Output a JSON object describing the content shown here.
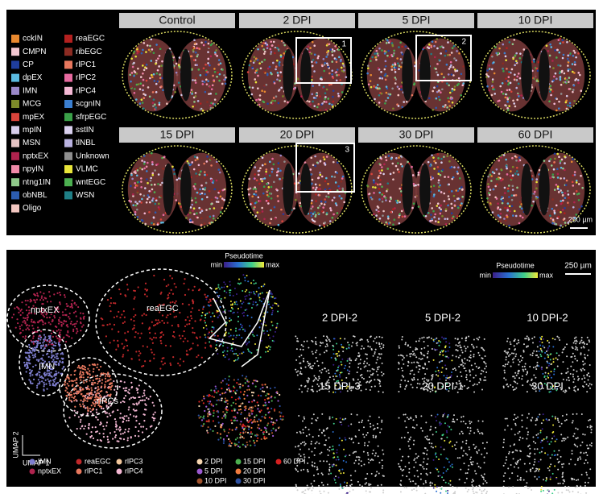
{
  "top": {
    "legend": [
      {
        "name": "cckIN",
        "color": "#e8892f"
      },
      {
        "name": "CMPN",
        "color": "#f3c7d0"
      },
      {
        "name": "CP",
        "color": "#1f3e9e"
      },
      {
        "name": "dpEX",
        "color": "#5bbbe0"
      },
      {
        "name": "IMN",
        "color": "#9a88c9"
      },
      {
        "name": "MCG",
        "color": "#7d8a2a"
      },
      {
        "name": "mpEX",
        "color": "#d9443b"
      },
      {
        "name": "mpIN",
        "color": "#d8cdea"
      },
      {
        "name": "MSN",
        "color": "#e6c4c4"
      },
      {
        "name": "nptxEX",
        "color": "#b0234e"
      },
      {
        "name": "npyIN",
        "color": "#f08aa8"
      },
      {
        "name": "ntng1IN",
        "color": "#8fc98a"
      },
      {
        "name": "obNBL",
        "color": "#2c5cb0"
      },
      {
        "name": "Oligo",
        "color": "#f2c6c0"
      },
      {
        "name": "reaEGC",
        "color": "#b3201f"
      },
      {
        "name": "ribEGC",
        "color": "#8c2b22"
      },
      {
        "name": "rlPC1",
        "color": "#e8785e"
      },
      {
        "name": "rlPC2",
        "color": "#e76aa0"
      },
      {
        "name": "rlPC4",
        "color": "#f4b8d4"
      },
      {
        "name": "scgnIN",
        "color": "#3b7fd0"
      },
      {
        "name": "sfrpEGC",
        "color": "#3aa048"
      },
      {
        "name": "sstIN",
        "color": "#d9d0ee"
      },
      {
        "name": "tlNBL",
        "color": "#b9b2e0"
      },
      {
        "name": "Unknown",
        "color": "#8e8e8e"
      },
      {
        "name": "VLMC",
        "color": "#e8e53a"
      },
      {
        "name": "wntEGC",
        "color": "#4caf50"
      },
      {
        "name": "WSN",
        "color": "#1f7f86"
      }
    ],
    "panels": [
      "Control",
      "2 DPI",
      "5 DPI",
      "10 DPI",
      "15 DPI",
      "20 DPI",
      "30 DPI",
      "60 DPI"
    ],
    "boxes": [
      "1",
      "2",
      "3"
    ],
    "scale": "250 µm"
  },
  "bottom": {
    "clusters": [
      "nptxEX",
      "IMN",
      "reaEGC",
      "rlPCs"
    ],
    "axis_x": "UMAP 1",
    "axis_y": "UMAP 2",
    "legend": [
      {
        "name": "IMN",
        "color": "#7f7fd0"
      },
      {
        "name": "nptxEX",
        "color": "#b0234e"
      },
      {
        "name": "reaEGC",
        "color": "#c0282a"
      },
      {
        "name": "rlPC1",
        "color": "#e8785e"
      },
      {
        "name": "rlPC3",
        "color": "#f2c79c"
      },
      {
        "name": "rlPC4",
        "color": "#f4b8d4"
      }
    ],
    "pseudotime": {
      "title": "Pseudotime",
      "min": "min",
      "max": "max"
    },
    "times": [
      {
        "name": "2 DPI",
        "color": "#f6d6b0"
      },
      {
        "name": "5 DPI",
        "color": "#9b59d0"
      },
      {
        "name": "10 DPI",
        "color": "#a0522d"
      },
      {
        "name": "15 DPI",
        "color": "#4caf50"
      },
      {
        "name": "20 DPI",
        "color": "#f07b3f"
      },
      {
        "name": "30 DPI",
        "color": "#2c4fa0"
      },
      {
        "name": "60 DPI",
        "color": "#d62020"
      }
    ],
    "panels": [
      "2 DPI-2",
      "5 DPI-2",
      "10 DPI-2",
      "15 DPI-3",
      "20 DPI-1",
      "30 DPI"
    ],
    "scale": "250 µm"
  }
}
